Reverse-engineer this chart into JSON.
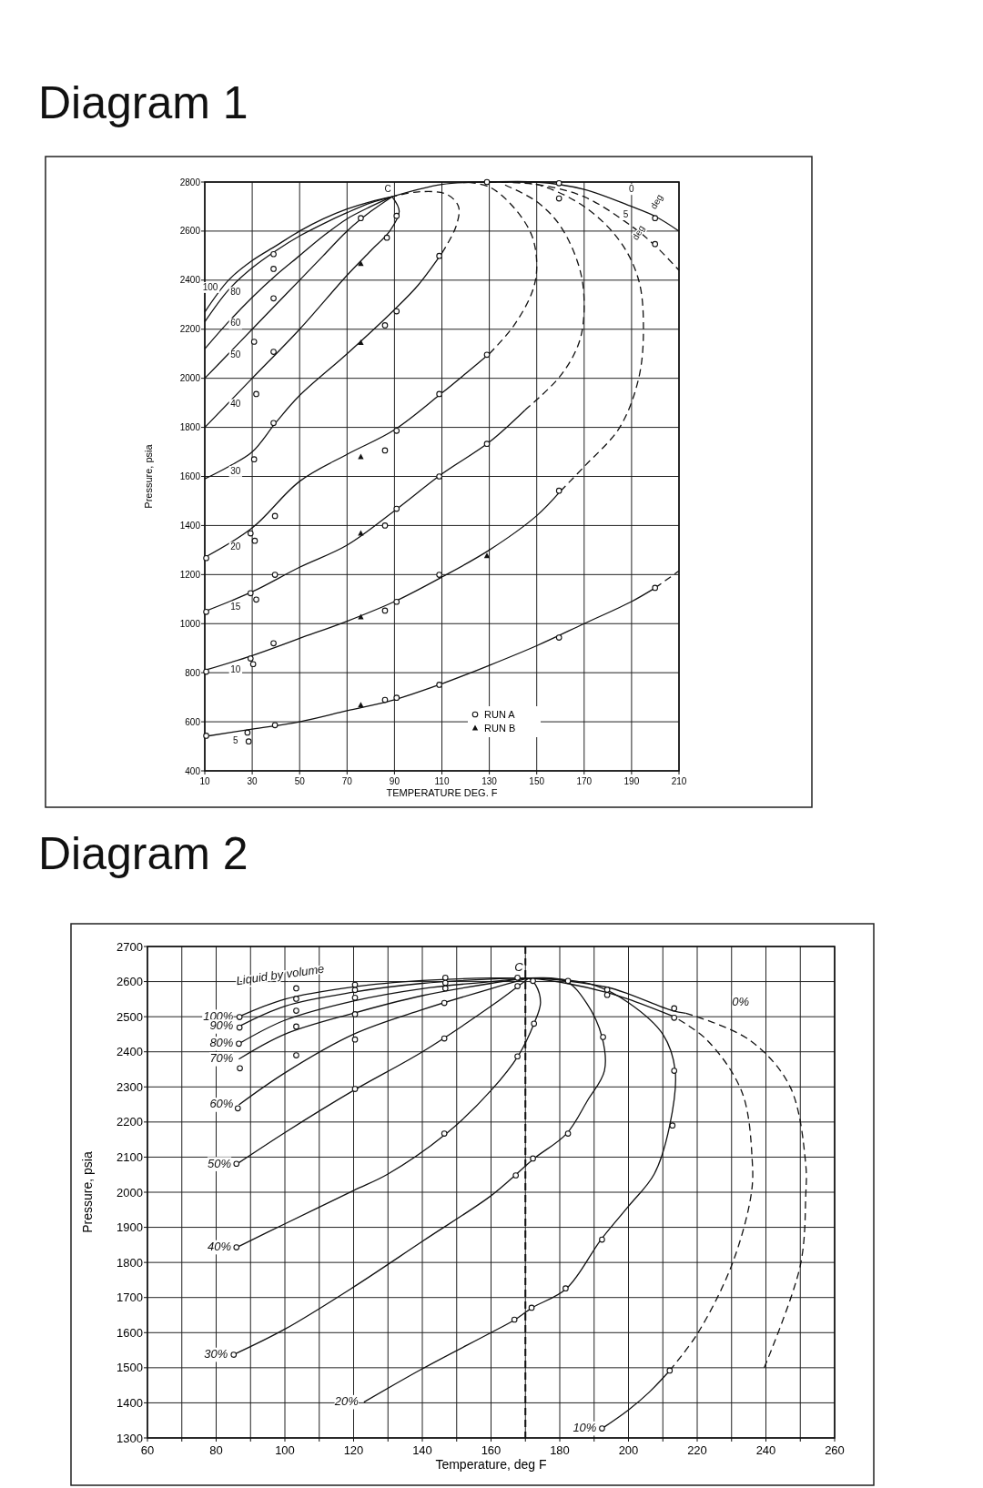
{
  "chart_data": [
    {
      "type": "line",
      "title": "Diagram 1",
      "xlabel": "TEMPERATURE  DEG. F",
      "ylabel": "Pressure, psia",
      "xlim": [
        10,
        210
      ],
      "ylim": [
        400,
        2800
      ],
      "xticks": [
        10,
        30,
        50,
        70,
        90,
        110,
        130,
        150,
        170,
        190,
        210
      ],
      "yticks": [
        400,
        600,
        800,
        1000,
        1200,
        1400,
        1600,
        1800,
        2000,
        2200,
        2400,
        2600,
        2800
      ],
      "grid": true,
      "line_style": "solid",
      "legend": "bottom right",
      "series": [
        {
          "name": "100",
          "x": [
            10,
            20,
            30,
            40,
            50,
            60,
            70,
            80,
            89
          ],
          "values": [
            2270,
            2400,
            2480,
            2540,
            2600,
            2650,
            2690,
            2720,
            2740
          ],
          "color": "#111111"
        },
        {
          "name": "80",
          "x": [
            10,
            20,
            30,
            40,
            50,
            60,
            70,
            80,
            89
          ],
          "values": [
            2230,
            2360,
            2450,
            2520,
            2580,
            2630,
            2675,
            2715,
            2740
          ],
          "color": "#111111"
        },
        {
          "name": "60",
          "x": [
            10,
            20,
            30,
            40,
            50,
            60,
            70,
            80,
            89
          ],
          "values": [
            2120,
            2230,
            2330,
            2420,
            2500,
            2580,
            2650,
            2700,
            2740
          ],
          "color": "#111111"
        },
        {
          "name": "50",
          "x": [
            10,
            20,
            30,
            40,
            50,
            60,
            70,
            80,
            89
          ],
          "values": [
            2000,
            2100,
            2200,
            2300,
            2400,
            2500,
            2600,
            2680,
            2740
          ],
          "color": "#111111"
        },
        {
          "name": "40",
          "x": [
            10,
            30,
            50,
            70,
            80,
            88,
            92,
            89
          ],
          "values": [
            1800,
            2000,
            2200,
            2420,
            2520,
            2600,
            2680,
            2740
          ],
          "color": "#111111"
        },
        {
          "name": "30",
          "x": [
            10,
            20,
            30,
            40,
            50,
            70,
            90,
            100,
            110
          ],
          "values": [
            1590,
            1640,
            1700,
            1820,
            1930,
            2100,
            2280,
            2380,
            2510
          ],
          "color": "#111111"
        },
        {
          "x": [
            110,
            116,
            117,
            112,
            100,
            89
          ],
          "values": [
            2510,
            2620,
            2700,
            2750,
            2760,
            2740
          ],
          "color": "#111111",
          "line_style": "dashed"
        },
        {
          "name": "20",
          "x": [
            10,
            30,
            50,
            70,
            90,
            110,
            130
          ],
          "values": [
            1270,
            1390,
            1580,
            1690,
            1790,
            1940,
            2100
          ],
          "color": "#111111"
        },
        {
          "x": [
            130,
            140,
            148,
            150,
            148,
            140,
            130,
            120
          ],
          "values": [
            2100,
            2210,
            2350,
            2450,
            2580,
            2700,
            2780,
            2800
          ],
          "color": "#111111",
          "line_style": "dashed"
        },
        {
          "name": "15",
          "x": [
            10,
            30,
            50,
            70,
            90,
            110,
            130,
            145
          ],
          "values": [
            1050,
            1130,
            1230,
            1320,
            1460,
            1610,
            1740,
            1870
          ],
          "color": "#111111"
        },
        {
          "x": [
            145,
            160,
            168,
            170,
            168,
            160,
            150,
            135
          ],
          "values": [
            1870,
            2010,
            2150,
            2300,
            2450,
            2620,
            2720,
            2795
          ],
          "color": "#111111",
          "line_style": "dashed"
        },
        {
          "name": "10",
          "x": [
            10,
            30,
            50,
            70,
            90,
            110,
            130,
            150,
            160
          ],
          "values": [
            810,
            870,
            940,
            1010,
            1090,
            1190,
            1300,
            1440,
            1540
          ],
          "color": "#111111"
        },
        {
          "x": [
            160,
            170,
            185,
            193,
            195,
            193,
            185,
            170,
            150,
            135
          ],
          "values": [
            1540,
            1640,
            1800,
            2000,
            2200,
            2400,
            2560,
            2700,
            2790,
            2800
          ],
          "color": "#111111",
          "line_style": "dashed"
        },
        {
          "name": "5",
          "x": [
            10,
            30,
            50,
            70,
            90,
            110,
            130,
            150,
            170,
            190,
            200
          ],
          "values": [
            540,
            570,
            600,
            645,
            690,
            755,
            830,
            910,
            1000,
            1090,
            1146
          ],
          "color": "#111111"
        },
        {
          "x": [
            200,
            210
          ],
          "values": [
            1146,
            1215
          ],
          "color": "#111111",
          "line_style": "dashed"
        },
        {
          "name": "0",
          "x": [
            89,
            110,
            130,
            150,
            170,
            190,
            200,
            210
          ],
          "values": [
            2740,
            2790,
            2800,
            2800,
            2770,
            2700,
            2660,
            2600
          ],
          "color": "#111111"
        },
        {
          "name": "5",
          "x": [
            130,
            150,
            170,
            190,
            200,
            210
          ],
          "values": [
            2800,
            2790,
            2740,
            2620,
            2540,
            2440
          ],
          "color": "#111111",
          "line_style": "dashed"
        },
        {
          "type": "scatter",
          "name": "RUN A",
          "marker": "circle",
          "color": "#111111",
          "x": [
            39,
            39,
            39,
            39,
            30.8,
            31.7,
            39,
            30.8,
            90.9,
            86,
            86.8,
            90.9,
            75.8,
            108.9,
            90.9,
            86,
            129,
            129,
            108.9,
            108.9,
            159.4,
            159.4,
            199.9,
            199.9,
            129,
            39.6,
            29.3,
            31.1,
            10.6,
            39.6,
            29.3,
            31.7,
            10.6,
            86,
            90.9,
            90.9,
            86,
            108.9,
            159.4,
            39,
            29.3,
            30.4,
            10.6,
            39.6,
            28,
            28.5,
            10.6,
            86,
            90.9,
            108.9,
            159.4,
            199.9
          ],
          "values": [
            2506,
            2446,
            2326,
            2108,
            2149,
            1936,
            1818,
            1670,
            2273,
            2216,
            2573,
            2662,
            2653,
            1936,
            1786,
            1706,
            2096,
            1733,
            1600,
            2499,
            2733,
            2795,
            2653,
            2547,
            2800,
            1439,
            1368,
            1338,
            1267,
            1199,
            1124,
            1098,
            1048,
            1053,
            1089,
            1468,
            1400,
            1199,
            1542,
            920,
            858,
            835,
            804,
            586,
            556,
            520,
            543,
            689,
            698,
            751,
            943,
            1146
          ]
        },
        {
          "type": "scatter",
          "name": "RUN B",
          "marker": "triangle",
          "color": "#111111",
          "x": [
            75.8,
            75.8,
            75.8,
            75.8,
            75.8,
            129,
            75.8
          ],
          "values": [
            2145,
            2467,
            1680,
            1027,
            1368,
            1276,
            668
          ]
        }
      ],
      "annotations": [
        "C",
        "deg",
        "deg"
      ]
    },
    {
      "type": "line",
      "title": "Diagram 2",
      "xlabel": "Temperature, deg F",
      "ylabel": "Pressure, psia",
      "xlim": [
        60,
        260
      ],
      "ylim": [
        1300,
        2700
      ],
      "xticks": [
        60,
        {
          "value": 70,
          "label": null
        },
        80,
        {
          "value": 90,
          "label": null
        },
        100,
        {
          "value": 110,
          "label": null
        },
        120,
        {
          "value": 130,
          "label": null
        },
        140,
        {
          "value": 150,
          "label": null
        },
        160,
        {
          "value": 170,
          "label": null
        },
        180,
        {
          "value": 190,
          "label": null
        },
        200,
        {
          "value": 210,
          "label": null
        },
        220,
        {
          "value": 230,
          "label": null
        },
        240,
        {
          "value": 250,
          "label": null
        },
        260
      ],
      "yticks": [
        1300,
        1400,
        1500,
        1600,
        1700,
        1800,
        1900,
        2000,
        2100,
        2200,
        2300,
        2400,
        2500,
        2600,
        2700
      ],
      "grid": true,
      "line_style": "solid",
      "ref_lines": [
        {
          "axis": "x",
          "value": 170,
          "line_style": "dashed"
        }
      ],
      "series": [
        {
          "name": "100%",
          "x": [
            86.6,
            100,
            120,
            140,
            160,
            171
          ],
          "values": [
            2500,
            2550,
            2585,
            2603,
            2610,
            2610
          ],
          "color": "#111111"
        },
        {
          "name": "90%",
          "x": [
            86.6,
            100,
            120,
            140,
            160,
            171
          ],
          "values": [
            2472,
            2530,
            2570,
            2595,
            2607,
            2610
          ],
          "color": "#111111"
        },
        {
          "name": "80%",
          "x": [
            86.6,
            100,
            120,
            140,
            160,
            171
          ],
          "values": [
            2423,
            2490,
            2545,
            2580,
            2600,
            2610
          ],
          "color": "#111111"
        },
        {
          "name": "70%",
          "x": [
            86.6,
            100,
            120,
            140,
            160,
            171
          ],
          "values": [
            2379,
            2450,
            2510,
            2560,
            2595,
            2610
          ],
          "color": "#111111"
        },
        {
          "name": "60%",
          "x": [
            86.6,
            100,
            120,
            140,
            160,
            171
          ],
          "values": [
            2249,
            2340,
            2450,
            2520,
            2580,
            2610
          ],
          "color": "#111111"
        },
        {
          "name": "50%",
          "x": [
            86,
            100,
            120,
            140,
            160,
            171
          ],
          "values": [
            2080,
            2170,
            2290,
            2400,
            2530,
            2610
          ],
          "color": "#111111"
        },
        {
          "name": "40%",
          "x": [
            86,
            100,
            120,
            130,
            147,
            160,
            168,
            172.5,
            174.4,
            173,
            171
          ],
          "values": [
            1843,
            1910,
            2005,
            2052,
            2167,
            2290,
            2390,
            2480,
            2540,
            2590,
            2610
          ],
          "color": "#111111"
        },
        {
          "name": "30%",
          "x": [
            85,
            100,
            120,
            140,
            160,
            167,
            172.5,
            182,
            188,
            193,
            192.3,
            187.8,
            181.7,
            171
          ],
          "values": [
            1537,
            1610,
            1730,
            1860,
            1990,
            2048,
            2096,
            2167,
            2260,
            2346,
            2442,
            2539,
            2602,
            2610
          ],
          "color": "#111111"
        },
        {
          "name": "20%",
          "x": [
            123,
            140,
            160,
            167,
            172,
            182,
            192,
            200,
            207.5,
            212,
            213.6,
            210,
            200,
            190,
            181.7,
            171
          ],
          "values": [
            1402,
            1497,
            1600,
            1637,
            1671,
            1726,
            1865,
            1960,
            2052,
            2190,
            2346,
            2450,
            2540,
            2590,
            2605,
            2610
          ],
          "color": "#111111"
        },
        {
          "name": "10%",
          "x": [
            192.3,
            200,
            206,
            212
          ],
          "values": [
            1327,
            1380,
            1430,
            1492
          ],
          "color": "#111111"
        },
        {
          "x": [
            212,
            220,
            230,
            235.7,
            236,
            233,
            222.7,
            212.8
          ],
          "values": [
            1492,
            1596,
            1791,
            1993,
            2093,
            2286,
            2435,
            2502
          ],
          "color": "#111111",
          "line_style": "dashed"
        },
        {
          "x": [
            212.8,
            200,
            193.8,
            182,
            171
          ],
          "values": [
            2502,
            2550,
            2569,
            2595,
            2610
          ],
          "color": "#111111"
        },
        {
          "name": "0%",
          "x": [
            239.5,
            250,
            251.6,
            251.6,
            247,
            235,
            216.7
          ],
          "values": [
            1500,
            1791,
            1993,
            2078,
            2301,
            2435,
            2510
          ],
          "color": "#111111",
          "line_style": "dashed"
        },
        {
          "x": [
            216.7,
            212.8,
            200,
            193.8,
            182,
            171
          ],
          "values": [
            2510,
            2517,
            2565,
            2584,
            2602,
            2610
          ],
          "color": "#111111"
        },
        {
          "type": "scatter",
          "marker": "circle",
          "color": "#111111",
          "x": [
            86.8,
            86.8,
            86.6,
            86.9,
            86.3,
            85.9,
            103.3,
            103.3,
            103.3,
            103.3,
            103.3,
            120.4,
            120.4,
            120.4,
            120.4,
            120.4,
            120.4,
            146.7,
            146.7,
            146.7,
            146.4,
            146.4,
            146.4,
            167.7,
            167.7,
            167.7,
            167.2,
            172.2,
            172.5,
            172.2,
            182.4,
            182.4,
            192.6,
            193.8,
            193.8,
            213.3,
            213.3,
            213.3,
            212.8,
            85.9,
            85.1,
            166.8,
            171.8,
            181.7,
            192.3,
            192.3,
            212
          ],
          "values": [
            2499,
            2469,
            2423,
            2353,
            2239,
            2081,
            2581,
            2551,
            2517,
            2472,
            2390,
            2591,
            2576,
            2554,
            2507,
            2435,
            2294,
            2611,
            2596,
            2581,
            2539,
            2438,
            2167,
            2611,
            2587,
            2387,
            2048,
            2096,
            2480,
            2602,
            2602,
            2167,
            2442,
            2577,
            2562,
            2524,
            2497,
            2346,
            2190,
            1843,
            1537,
            1637,
            1671,
            1726,
            1865,
            1327,
            1492
          ]
        }
      ],
      "annotations": [
        "Liquid by volume",
        "C"
      ]
    }
  ]
}
